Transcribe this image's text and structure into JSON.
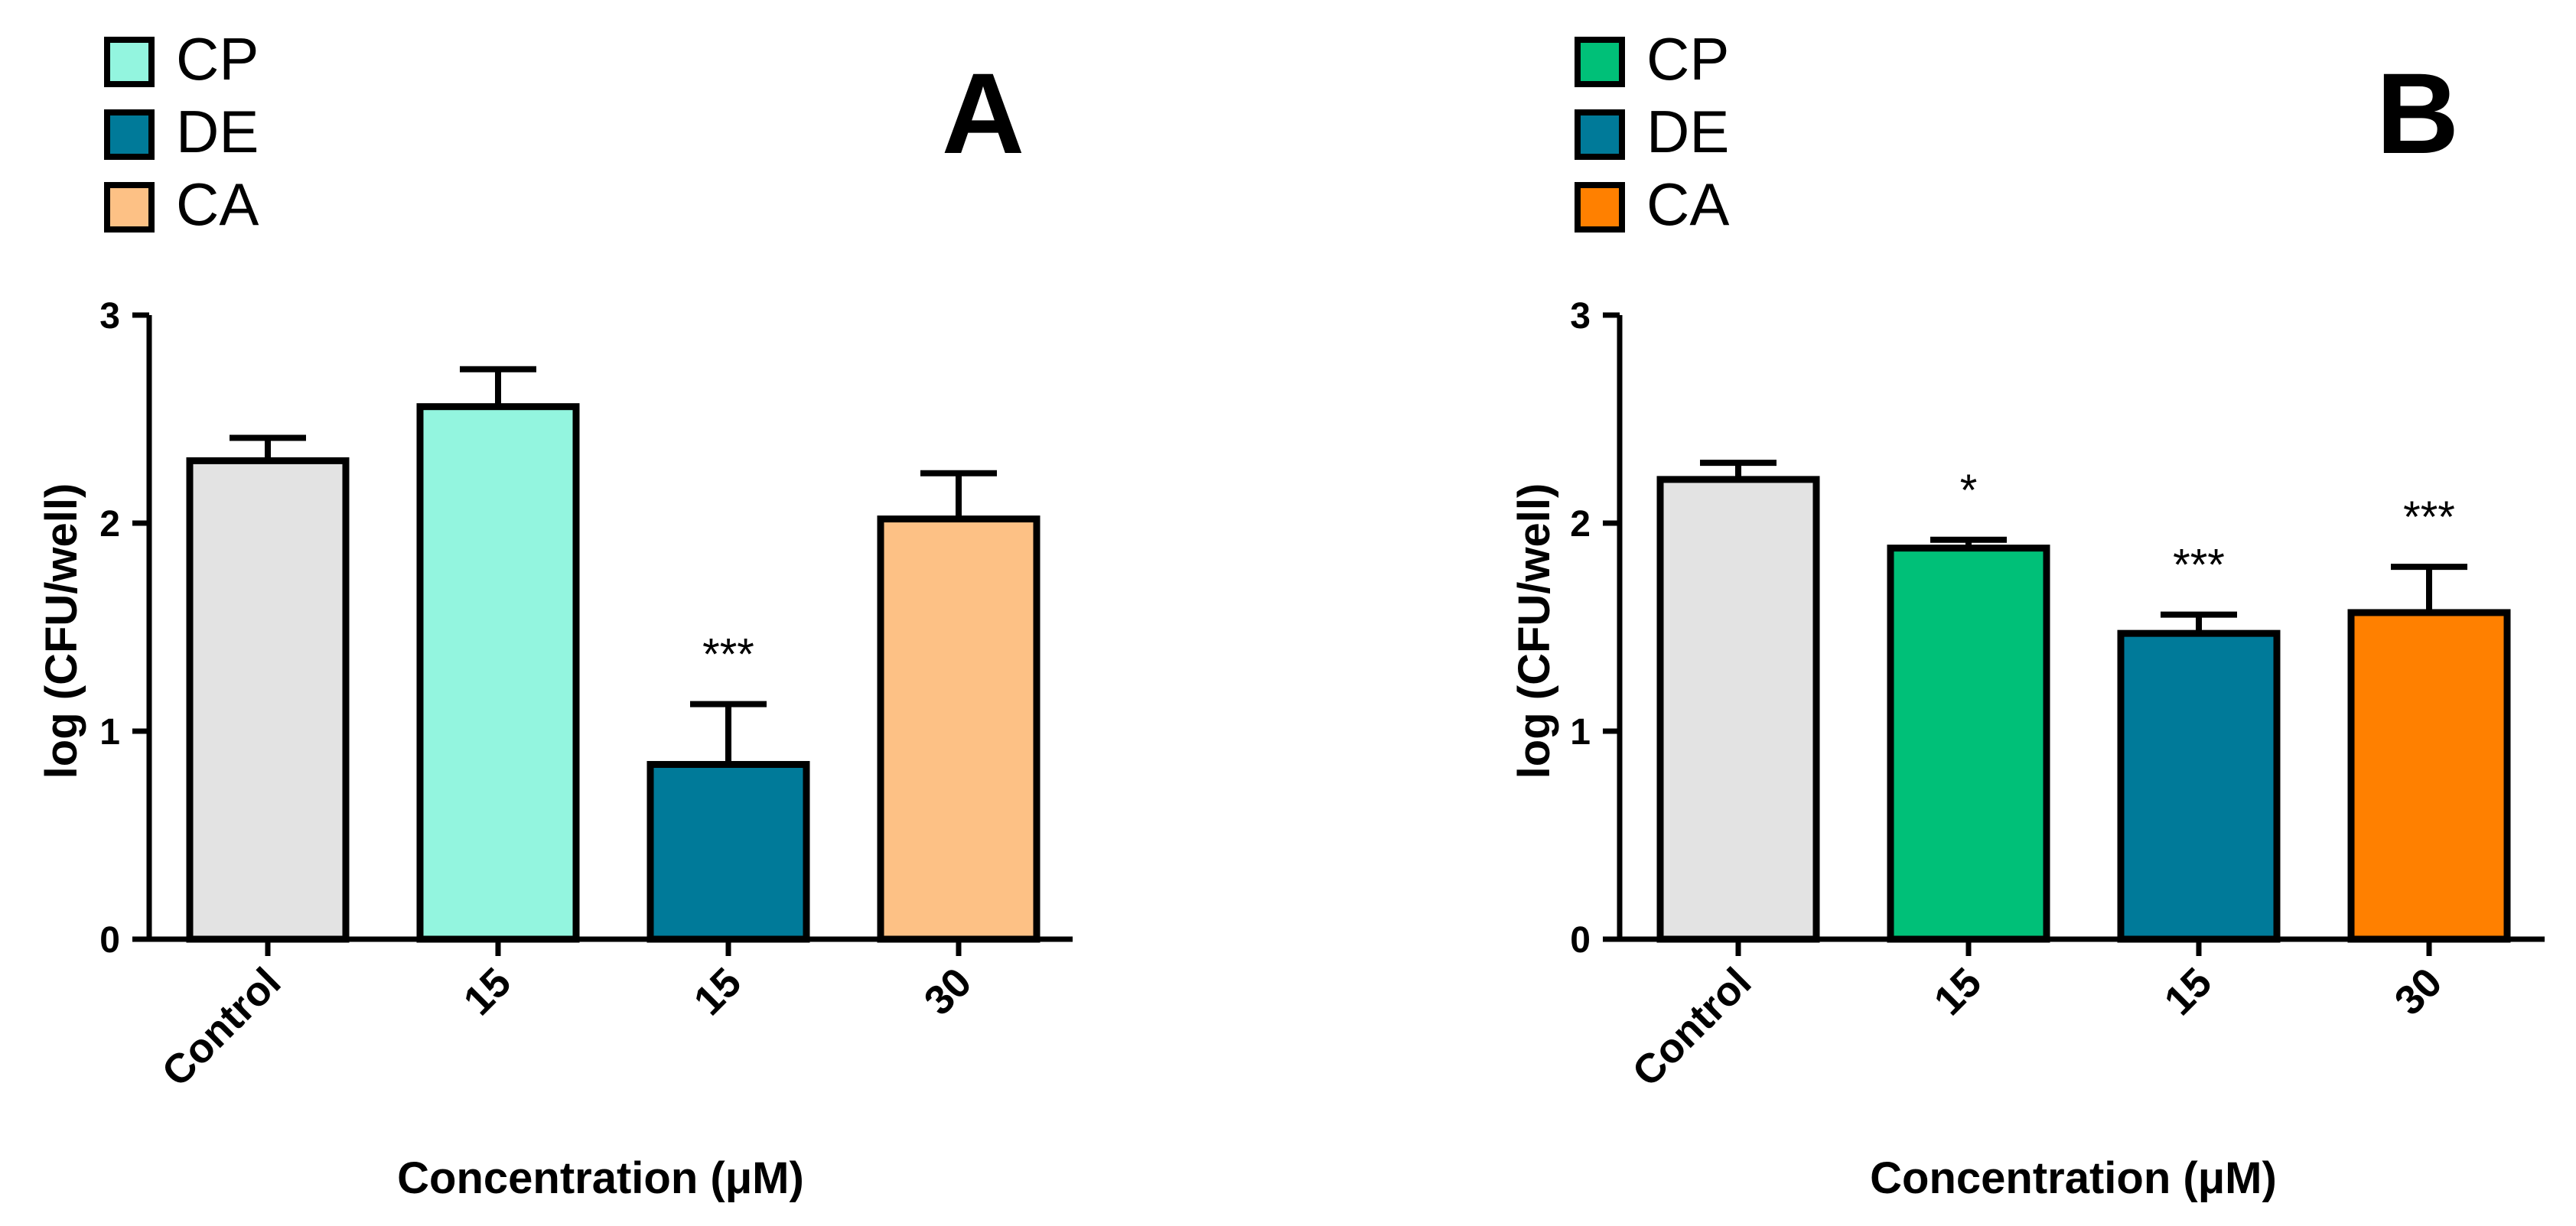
{
  "chart_data": [
    {
      "type": "bar",
      "panel": "A",
      "legend": [
        {
          "label": "CP",
          "color": "#93F5DF"
        },
        {
          "label": "DE",
          "color": "#007A99"
        },
        {
          "label": "CA",
          "color": "#FDC185"
        }
      ],
      "categories": [
        "Control",
        "15",
        "15",
        "30"
      ],
      "values": [
        2.3,
        2.56,
        0.84,
        2.02
      ],
      "errors": [
        0.11,
        0.18,
        0.29,
        0.22
      ],
      "colors": [
        "#E3E3E3",
        "#93F5DF",
        "#007A99",
        "#FDC185"
      ],
      "significance": [
        "",
        "",
        "***",
        ""
      ],
      "ylim": [
        0,
        3
      ],
      "yticks": [
        "0",
        "1",
        "2",
        "3"
      ],
      "ylabel": "log (CFU/well)",
      "xlabel": "Concentration (μM)"
    },
    {
      "type": "bar",
      "panel": "B",
      "legend": [
        {
          "label": "CP",
          "color": "#00C078"
        },
        {
          "label": "DE",
          "color": "#007A99"
        },
        {
          "label": "CA",
          "color": "#FF8000"
        }
      ],
      "categories": [
        "Control",
        "15",
        "15",
        "30"
      ],
      "values": [
        2.21,
        1.88,
        1.47,
        1.57
      ],
      "errors": [
        0.08,
        0.04,
        0.09,
        0.22
      ],
      "colors": [
        "#E3E3E3",
        "#00C078",
        "#007A99",
        "#FF8000"
      ],
      "significance": [
        "",
        "*",
        "***",
        "***"
      ],
      "ylim": [
        0,
        3
      ],
      "yticks": [
        "0",
        "1",
        "2",
        "3"
      ],
      "ylabel": "log (CFU/well)",
      "xlabel": "Concentration (μM)"
    }
  ]
}
